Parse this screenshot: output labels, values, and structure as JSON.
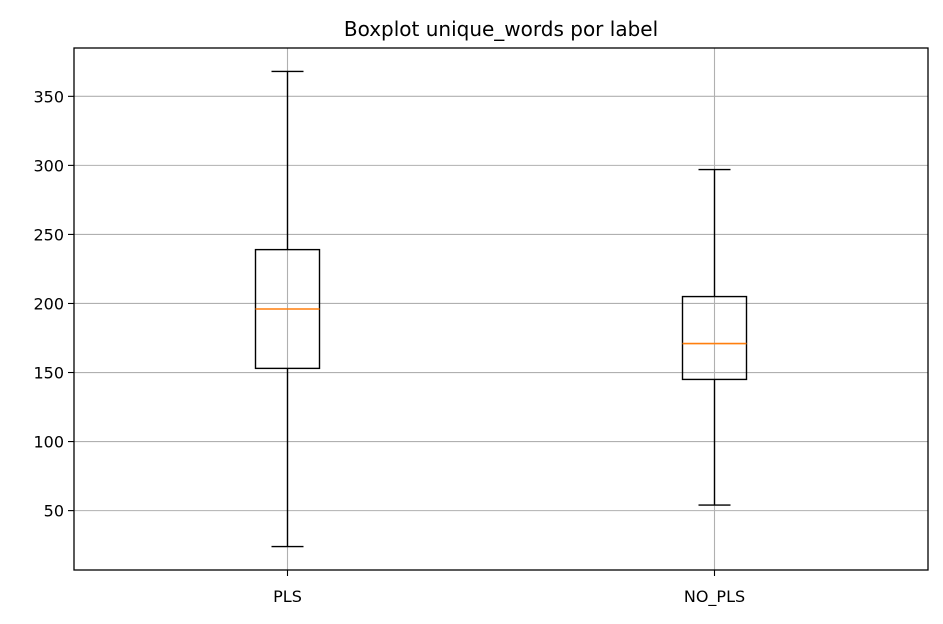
{
  "chart_data": {
    "type": "boxplot",
    "title": "Boxplot unique_words por label",
    "xlabel": "",
    "ylabel": "",
    "categories": [
      "PLS",
      "NO_PLS"
    ],
    "boxes": [
      {
        "label": "PLS",
        "whisker_low": 24,
        "q1": 153,
        "median": 196,
        "q3": 239,
        "whisker_high": 368
      },
      {
        "label": "NO_PLS",
        "whisker_low": 54,
        "q1": 145,
        "median": 171,
        "q3": 205,
        "whisker_high": 297
      }
    ],
    "ylim": [
      7,
      385
    ],
    "yticks": [
      50,
      100,
      150,
      200,
      250,
      300,
      350
    ],
    "grid": true,
    "colors": {
      "box": "#000000",
      "median": "#ff7f0e",
      "grid": "#b0b0b0"
    }
  }
}
